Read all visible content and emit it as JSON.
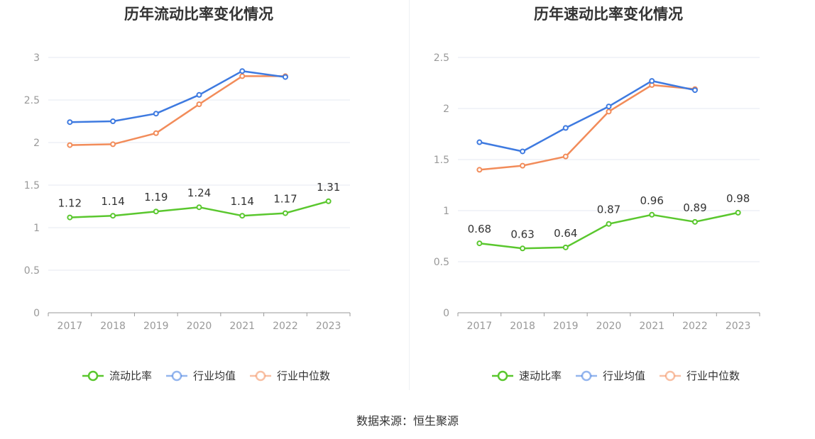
{
  "source": "数据来源：恒生聚源",
  "chart_data": [
    {
      "type": "line",
      "title": "历年流动比率变化情况",
      "categories": [
        "2017",
        "2018",
        "2019",
        "2020",
        "2021",
        "2022",
        "2023"
      ],
      "ylim": [
        0,
        3
      ],
      "yticks": [
        0,
        0.5,
        1,
        1.5,
        2,
        2.5,
        3
      ],
      "grid": true,
      "legend_position": "bottom",
      "series": [
        {
          "name": "流动比率",
          "color": "#5ac72e",
          "labeled": true,
          "values": [
            1.12,
            1.14,
            1.19,
            1.24,
            1.14,
            1.17,
            1.31
          ],
          "labels": [
            "1.12",
            "1.14",
            "1.19",
            "1.24",
            "1.14",
            "1.17",
            "1.31"
          ]
        },
        {
          "name": "行业均值",
          "color": "#3e7ae0",
          "labeled": false,
          "values": [
            2.24,
            2.25,
            2.34,
            2.56,
            2.84,
            2.77,
            null
          ]
        },
        {
          "name": "行业中位数",
          "color": "#f28c5a",
          "labeled": false,
          "values": [
            1.97,
            1.98,
            2.11,
            2.45,
            2.78,
            2.78,
            null
          ]
        }
      ]
    },
    {
      "type": "line",
      "title": "历年速动比率变化情况",
      "categories": [
        "2017",
        "2018",
        "2019",
        "2020",
        "2021",
        "2022",
        "2023"
      ],
      "ylim": [
        0,
        2.5
      ],
      "yticks": [
        0,
        0.5,
        1,
        1.5,
        2,
        2.5
      ],
      "grid": true,
      "legend_position": "bottom",
      "series": [
        {
          "name": "速动比率",
          "color": "#5ac72e",
          "labeled": true,
          "values": [
            0.68,
            0.63,
            0.64,
            0.87,
            0.96,
            0.89,
            0.98
          ],
          "labels": [
            "0.68",
            "0.63",
            "0.64",
            "0.87",
            "0.96",
            "0.89",
            "0.98"
          ]
        },
        {
          "name": "行业均值",
          "color": "#3e7ae0",
          "labeled": false,
          "values": [
            1.67,
            1.58,
            1.81,
            2.02,
            2.27,
            2.18,
            null
          ]
        },
        {
          "name": "行业中位数",
          "color": "#f28c5a",
          "labeled": false,
          "values": [
            1.4,
            1.44,
            1.53,
            1.97,
            2.23,
            2.19,
            null
          ]
        }
      ]
    }
  ]
}
